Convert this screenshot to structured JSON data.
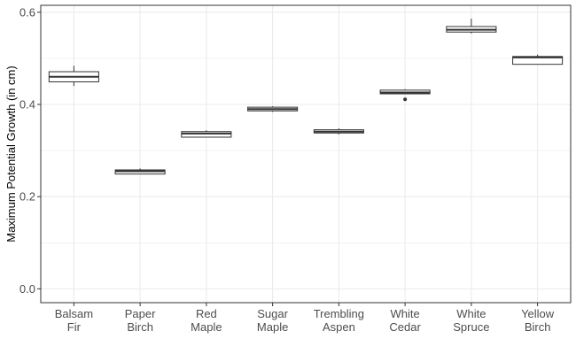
{
  "chart_data": {
    "type": "box",
    "title": "",
    "xlabel": "",
    "ylabel": "Maximum Potential Growth (in cm)",
    "ylim": [
      -0.03,
      0.615
    ],
    "yticks": [
      0.0,
      0.2,
      0.4,
      0.6
    ],
    "ytick_labels": [
      "0.0",
      "0.2",
      "0.4",
      "0.6"
    ],
    "grid": true,
    "categories": [
      [
        "Balsam",
        "Fir"
      ],
      [
        "Paper",
        "Birch"
      ],
      [
        "Red",
        "Maple"
      ],
      [
        "Sugar",
        "Maple"
      ],
      [
        "Trembling",
        "Aspen"
      ],
      [
        "White",
        "Cedar"
      ],
      [
        "White",
        "Spruce"
      ],
      [
        "Yellow",
        "Birch"
      ]
    ],
    "boxes": [
      {
        "min": 0.44,
        "q1": 0.449,
        "median": 0.46,
        "q3": 0.471,
        "max": 0.484,
        "outliers": []
      },
      {
        "min": 0.249,
        "q1": 0.249,
        "median": 0.255,
        "q3": 0.258,
        "max": 0.261,
        "outliers": []
      },
      {
        "min": 0.329,
        "q1": 0.329,
        "median": 0.337,
        "q3": 0.341,
        "max": 0.344,
        "outliers": []
      },
      {
        "min": 0.384,
        "q1": 0.386,
        "median": 0.39,
        "q3": 0.394,
        "max": 0.396,
        "outliers": []
      },
      {
        "min": 0.335,
        "q1": 0.338,
        "median": 0.341,
        "q3": 0.345,
        "max": 0.348,
        "outliers": []
      },
      {
        "min": 0.423,
        "q1": 0.423,
        "median": 0.426,
        "q3": 0.431,
        "max": 0.433,
        "outliers": [
          0.411
        ]
      },
      {
        "min": 0.554,
        "q1": 0.557,
        "median": 0.562,
        "q3": 0.569,
        "max": 0.586,
        "outliers": []
      },
      {
        "min": 0.487,
        "q1": 0.487,
        "median": 0.502,
        "q3": 0.504,
        "max": 0.508,
        "outliers": []
      }
    ],
    "colors": {
      "panel_background": "#ffffff",
      "grid": "#ebebeb",
      "box_fill": "#ffffff",
      "box_stroke": "#333333",
      "panel_border": "#333333"
    }
  }
}
